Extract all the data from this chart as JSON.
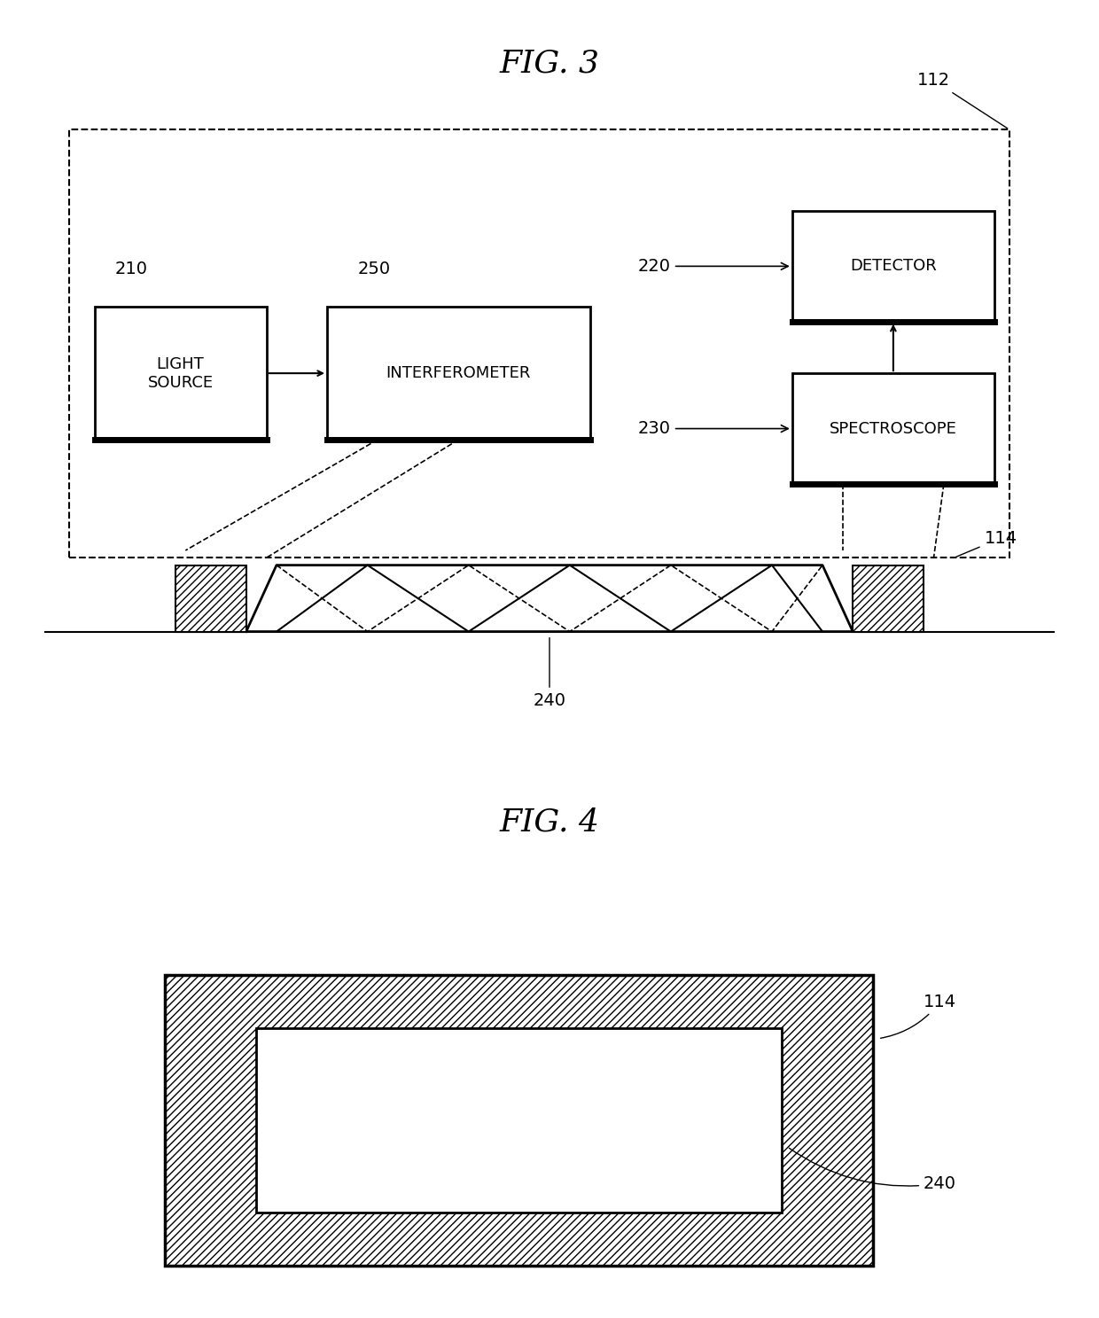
{
  "fig3_title": "FIG. 3",
  "fig4_title": "FIG. 4",
  "bg_color": "#ffffff",
  "label_112": "112",
  "label_114": "114",
  "label_210": "210",
  "label_220": "220",
  "label_230": "230",
  "label_240": "240",
  "label_250": "250",
  "text_light_source": "LIGHT\nSOURCE",
  "text_interferometer": "INTERFEROMETER",
  "text_detector": "DETECTOR",
  "text_spectroscope": "SPECTROSCOPE",
  "font_size_title": 26,
  "font_size_label": 14,
  "font_size_box": 13
}
